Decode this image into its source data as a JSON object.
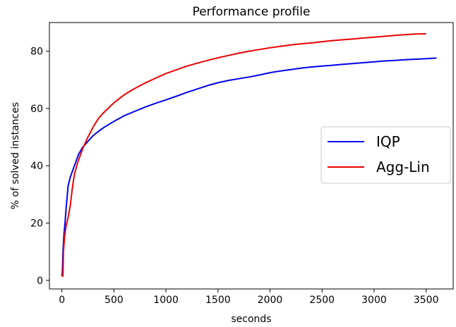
{
  "chart_data": {
    "type": "line",
    "title": "Performance profile",
    "xlabel": "seconds",
    "ylabel": "% of solved instances",
    "xlim": [
      -120,
      3760
    ],
    "ylim": [
      -3,
      90
    ],
    "xticks": [
      0,
      500,
      1000,
      1500,
      2000,
      2500,
      3000,
      3500
    ],
    "yticks": [
      0,
      20,
      40,
      60,
      80
    ],
    "grid": false,
    "legend_position": "right",
    "series": [
      {
        "name": "IQP",
        "color": "#0000ee",
        "x": [
          0,
          5,
          10,
          20,
          30,
          40,
          50,
          60,
          80,
          100,
          130,
          160,
          200,
          250,
          300,
          350,
          400,
          500,
          600,
          700,
          800,
          900,
          1000,
          1100,
          1200,
          1300,
          1400,
          1500,
          1600,
          1700,
          1800,
          1900,
          2000,
          2100,
          2200,
          2300,
          2400,
          2500,
          2600,
          2700,
          2800,
          2900,
          3000,
          3100,
          3200,
          3300,
          3400,
          3500,
          3600
        ],
        "y": [
          1.5,
          3,
          10,
          16,
          20,
          25,
          29,
          33,
          36,
          38,
          41,
          44,
          46.5,
          48.5,
          50.5,
          52,
          53.3,
          55.5,
          57.5,
          59,
          60.5,
          61.8,
          63,
          64.3,
          65.6,
          66.8,
          68,
          69,
          69.8,
          70.4,
          71,
          71.7,
          72.5,
          73.1,
          73.6,
          74.1,
          74.5,
          74.8,
          75.1,
          75.4,
          75.7,
          76,
          76.3,
          76.6,
          76.8,
          77,
          77.2,
          77.4,
          77.6
        ]
      },
      {
        "name": "Agg-Lin",
        "color": "#ee0000",
        "x": [
          0,
          10,
          15,
          25,
          40,
          60,
          80,
          100,
          120,
          150,
          200,
          250,
          300,
          350,
          400,
          500,
          600,
          700,
          800,
          900,
          1000,
          1100,
          1200,
          1300,
          1400,
          1500,
          1600,
          1700,
          1800,
          1900,
          2000,
          2100,
          2200,
          2300,
          2400,
          2500,
          2600,
          2700,
          2800,
          2900,
          3000,
          3100,
          3200,
          3300,
          3400,
          3500
        ],
        "y": [
          1.5,
          1.5,
          10,
          15,
          19,
          22,
          26,
          32,
          37,
          41,
          46,
          50,
          53.5,
          56.5,
          58.5,
          62,
          64.8,
          67,
          68.9,
          70.6,
          72.2,
          73.5,
          74.8,
          75.8,
          76.8,
          77.7,
          78.5,
          79.3,
          80,
          80.6,
          81.2,
          81.7,
          82.2,
          82.6,
          82.9,
          83.3,
          83.7,
          84,
          84.3,
          84.6,
          84.9,
          85.2,
          85.5,
          85.8,
          86,
          86.1
        ]
      }
    ]
  }
}
